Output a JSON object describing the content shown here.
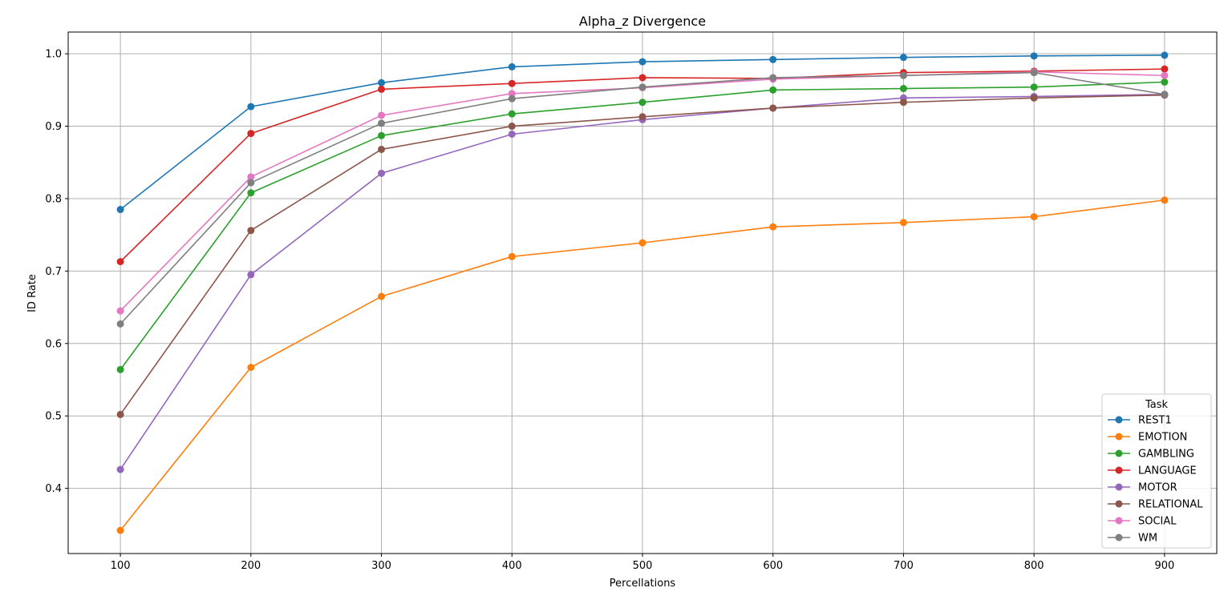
{
  "chart_data": {
    "type": "line",
    "title": "Alpha_z Divergence",
    "xlabel": "Percellations",
    "ylabel": "ID Rate",
    "x": [
      100,
      200,
      300,
      400,
      500,
      600,
      700,
      800,
      900
    ],
    "xlim": [
      60,
      940
    ],
    "ylim": [
      0.31,
      1.03
    ],
    "xticks": [
      "100",
      "200",
      "300",
      "400",
      "500",
      "600",
      "700",
      "800",
      "900"
    ],
    "yticks": [
      "0.4",
      "0.5",
      "0.6",
      "0.7",
      "0.8",
      "0.9",
      "1.0"
    ],
    "grid": true,
    "marker": "circle",
    "legend": {
      "title": "Task",
      "position": "lower-right"
    },
    "series": [
      {
        "name": "REST1",
        "color": "#1f77b4",
        "values": [
          0.785,
          0.927,
          0.96,
          0.982,
          0.989,
          0.992,
          0.995,
          0.997,
          0.998
        ]
      },
      {
        "name": "EMOTION",
        "color": "#ff7f0e",
        "values": [
          0.342,
          0.567,
          0.665,
          0.72,
          0.739,
          0.761,
          0.767,
          0.775,
          0.798
        ]
      },
      {
        "name": "GAMBLING",
        "color": "#2ca02c",
        "values": [
          0.564,
          0.808,
          0.887,
          0.917,
          0.933,
          0.95,
          0.952,
          0.954,
          0.961
        ]
      },
      {
        "name": "LANGUAGE",
        "color": "#d62728",
        "values": [
          0.713,
          0.89,
          0.951,
          0.959,
          0.967,
          0.966,
          0.974,
          0.976,
          0.979
        ]
      },
      {
        "name": "MOTOR",
        "color": "#9467bd",
        "values": [
          0.426,
          0.695,
          0.835,
          0.889,
          0.909,
          0.925,
          0.939,
          0.941,
          0.944
        ]
      },
      {
        "name": "RELATIONAL",
        "color": "#8c564b",
        "values": [
          0.502,
          0.756,
          0.868,
          0.9,
          0.913,
          0.925,
          0.933,
          0.939,
          0.943
        ]
      },
      {
        "name": "SOCIAL",
        "color": "#e377c2",
        "values": [
          0.645,
          0.83,
          0.915,
          0.945,
          0.953,
          0.965,
          0.97,
          0.975,
          0.97
        ]
      },
      {
        "name": "WM",
        "color": "#7f7f7f",
        "values": [
          0.627,
          0.822,
          0.904,
          0.938,
          0.954,
          0.967,
          0.97,
          0.974,
          0.944
        ]
      }
    ]
  }
}
